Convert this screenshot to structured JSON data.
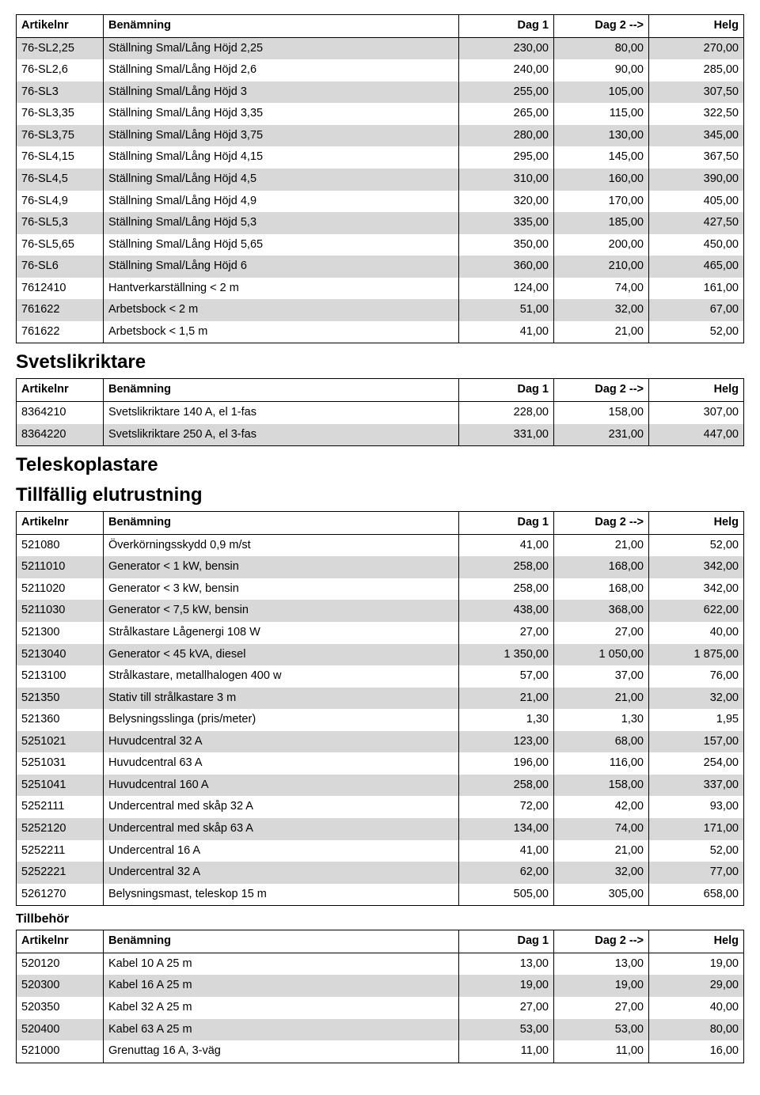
{
  "header": {
    "col_id": "Artikelnr",
    "col_name": "Benämning",
    "col_d1": "Dag 1",
    "col_d2": "Dag 2 -->",
    "col_helg": "Helg"
  },
  "colors": {
    "shaded_row_bg": "#d8d8d8",
    "border": "#000000",
    "text": "#000000",
    "background": "#ffffff"
  },
  "table1": {
    "rows": [
      {
        "id": "76-SL2,25",
        "name": "Ställning Smal/Lång Höjd 2,25",
        "d1": "230,00",
        "d2": "80,00",
        "h": "270,00",
        "shaded": true
      },
      {
        "id": "76-SL2,6",
        "name": "Ställning Smal/Lång Höjd 2,6",
        "d1": "240,00",
        "d2": "90,00",
        "h": "285,00",
        "shaded": false
      },
      {
        "id": "76-SL3",
        "name": "Ställning Smal/Lång Höjd 3",
        "d1": "255,00",
        "d2": "105,00",
        "h": "307,50",
        "shaded": true
      },
      {
        "id": "76-SL3,35",
        "name": "Ställning Smal/Lång Höjd 3,35",
        "d1": "265,00",
        "d2": "115,00",
        "h": "322,50",
        "shaded": false
      },
      {
        "id": "76-SL3,75",
        "name": "Ställning Smal/Lång Höjd 3,75",
        "d1": "280,00",
        "d2": "130,00",
        "h": "345,00",
        "shaded": true
      },
      {
        "id": "76-SL4,15",
        "name": "Ställning Smal/Lång Höjd 4,15",
        "d1": "295,00",
        "d2": "145,00",
        "h": "367,50",
        "shaded": false
      },
      {
        "id": "76-SL4,5",
        "name": "Ställning Smal/Lång Höjd 4,5",
        "d1": "310,00",
        "d2": "160,00",
        "h": "390,00",
        "shaded": true
      },
      {
        "id": "76-SL4,9",
        "name": "Ställning Smal/Lång Höjd 4,9",
        "d1": "320,00",
        "d2": "170,00",
        "h": "405,00",
        "shaded": false
      },
      {
        "id": "76-SL5,3",
        "name": "Ställning Smal/Lång Höjd 5,3",
        "d1": "335,00",
        "d2": "185,00",
        "h": "427,50",
        "shaded": true
      },
      {
        "id": "76-SL5,65",
        "name": "Ställning Smal/Lång Höjd 5,65",
        "d1": "350,00",
        "d2": "200,00",
        "h": "450,00",
        "shaded": false
      },
      {
        "id": "76-SL6",
        "name": "Ställning Smal/Lång Höjd 6",
        "d1": "360,00",
        "d2": "210,00",
        "h": "465,00",
        "shaded": true
      },
      {
        "id": "7612410",
        "name": "Hantverkarställning < 2 m",
        "d1": "124,00",
        "d2": "74,00",
        "h": "161,00",
        "shaded": false
      },
      {
        "id": "761622",
        "name": "Arbetsbock < 2 m",
        "d1": "51,00",
        "d2": "32,00",
        "h": "67,00",
        "shaded": true
      },
      {
        "id": "761622",
        "name": "Arbetsbock < 1,5 m",
        "d1": "41,00",
        "d2": "21,00",
        "h": "52,00",
        "shaded": false
      }
    ]
  },
  "section2": {
    "title": "Svetslikriktare",
    "rows": [
      {
        "id": "8364210",
        "name": "Svetslikriktare 140 A, el 1-fas",
        "d1": "228,00",
        "d2": "158,00",
        "h": "307,00",
        "shaded": false
      },
      {
        "id": "8364220",
        "name": "Svetslikriktare 250 A,  el 3-fas",
        "d1": "331,00",
        "d2": "231,00",
        "h": "447,00",
        "shaded": true
      }
    ]
  },
  "section3": {
    "title1": "Teleskoplastare",
    "title2": "Tillfällig elutrustning",
    "rows": [
      {
        "id": "521080",
        "name": "Överkörningsskydd 0,9 m/st",
        "d1": "41,00",
        "d2": "21,00",
        "h": "52,00",
        "shaded": false
      },
      {
        "id": "5211010",
        "name": "Generator < 1 kW, bensin",
        "d1": "258,00",
        "d2": "168,00",
        "h": "342,00",
        "shaded": true
      },
      {
        "id": "5211020",
        "name": "Generator < 3 kW, bensin",
        "d1": "258,00",
        "d2": "168,00",
        "h": "342,00",
        "shaded": false
      },
      {
        "id": "5211030",
        "name": "Generator < 7,5 kW, bensin",
        "d1": "438,00",
        "d2": "368,00",
        "h": "622,00",
        "shaded": true
      },
      {
        "id": "521300",
        "name": "Strålkastare Lågenergi 108 W",
        "d1": "27,00",
        "d2": "27,00",
        "h": "40,00",
        "shaded": false
      },
      {
        "id": "5213040",
        "name": "Generator < 45 kVA, diesel",
        "d1": "1 350,00",
        "d2": "1 050,00",
        "h": "1 875,00",
        "shaded": true
      },
      {
        "id": "5213100",
        "name": "Strålkastare, metallhalogen 400 w",
        "d1": "57,00",
        "d2": "37,00",
        "h": "76,00",
        "shaded": false
      },
      {
        "id": "521350",
        "name": "Stativ till strålkastare 3 m",
        "d1": "21,00",
        "d2": "21,00",
        "h": "32,00",
        "shaded": true
      },
      {
        "id": "521360",
        "name": "Belysningsslinga (pris/meter)",
        "d1": "1,30",
        "d2": "1,30",
        "h": "1,95",
        "shaded": false
      },
      {
        "id": "5251021",
        "name": "Huvudcentral 32 A",
        "d1": "123,00",
        "d2": "68,00",
        "h": "157,00",
        "shaded": true
      },
      {
        "id": "5251031",
        "name": "Huvudcentral 63 A",
        "d1": "196,00",
        "d2": "116,00",
        "h": "254,00",
        "shaded": false
      },
      {
        "id": "5251041",
        "name": "Huvudcentral 160 A",
        "d1": "258,00",
        "d2": "158,00",
        "h": "337,00",
        "shaded": true
      },
      {
        "id": "5252111",
        "name": "Undercentral med skåp 32 A",
        "d1": "72,00",
        "d2": "42,00",
        "h": "93,00",
        "shaded": false
      },
      {
        "id": "5252120",
        "name": "Undercentral med skåp 63 A",
        "d1": "134,00",
        "d2": "74,00",
        "h": "171,00",
        "shaded": true
      },
      {
        "id": "5252211",
        "name": "Undercentral 16 A",
        "d1": "41,00",
        "d2": "21,00",
        "h": "52,00",
        "shaded": false
      },
      {
        "id": "5252221",
        "name": "Undercentral 32 A",
        "d1": "62,00",
        "d2": "32,00",
        "h": "77,00",
        "shaded": true
      },
      {
        "id": "5261270",
        "name": "Belysningsmast, teleskop 15 m",
        "d1": "505,00",
        "d2": "305,00",
        "h": "658,00",
        "shaded": false
      }
    ]
  },
  "section4": {
    "title": "Tillbehör",
    "rows": [
      {
        "id": "520120",
        "name": "Kabel 10 A 25 m",
        "d1": "13,00",
        "d2": "13,00",
        "h": "19,00",
        "shaded": false
      },
      {
        "id": "520300",
        "name": "Kabel 16 A 25 m",
        "d1": "19,00",
        "d2": "19,00",
        "h": "29,00",
        "shaded": true
      },
      {
        "id": "520350",
        "name": "Kabel 32 A 25 m",
        "d1": "27,00",
        "d2": "27,00",
        "h": "40,00",
        "shaded": false
      },
      {
        "id": "520400",
        "name": "Kabel 63 A 25 m",
        "d1": "53,00",
        "d2": "53,00",
        "h": "80,00",
        "shaded": true
      },
      {
        "id": "521000",
        "name": "Grenuttag 16 A, 3-väg",
        "d1": "11,00",
        "d2": "11,00",
        "h": "16,00",
        "shaded": false
      }
    ]
  }
}
